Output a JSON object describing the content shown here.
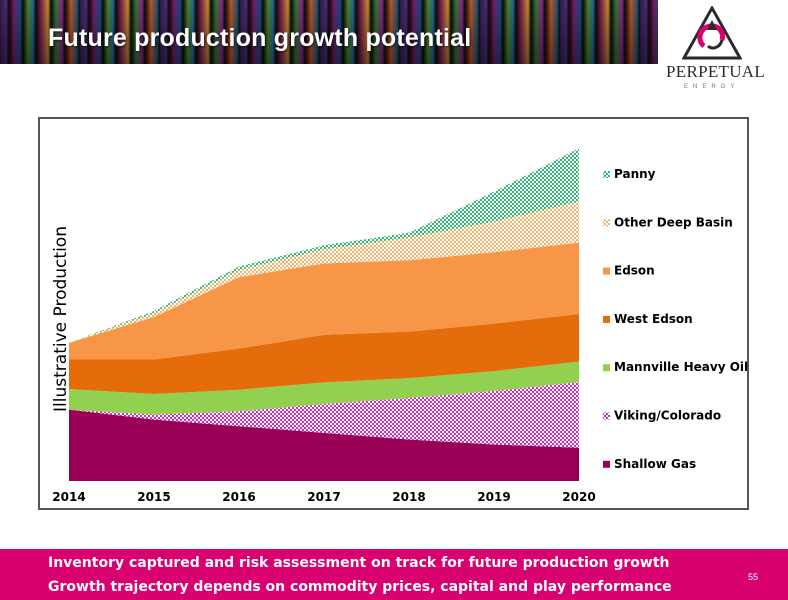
{
  "header": {
    "title": "Future production growth potential"
  },
  "logo": {
    "name": "PERPETUAL",
    "sub": "ENERGY"
  },
  "footer": {
    "line1": "Inventory captured and risk assessment on track for future production growth",
    "line2": "Growth trajectory depends on commodity prices, capital and play performance",
    "page_number": "55"
  },
  "chart_data": {
    "type": "area",
    "stacked": true,
    "title": "",
    "xlabel": "",
    "ylabel": "Illustrative Production",
    "x": [
      "2014",
      "2015",
      "2016",
      "2017",
      "2018",
      "2019",
      "2020"
    ],
    "ylim": [
      0,
      100
    ],
    "grid": false,
    "legend_position": "right",
    "series": [
      {
        "name": "Shallow Gas",
        "color": "#990055",
        "pattern": "solid",
        "values": [
          21.5,
          18.5,
          16.5,
          14.5,
          12.5,
          11.0,
          10.0
        ]
      },
      {
        "name": "Viking/Colorado",
        "color": "#d12bc0",
        "pattern": "dots",
        "values": [
          0,
          1.5,
          4.5,
          8.7,
          12.5,
          16.1,
          19.8
        ]
      },
      {
        "name": "Mannville Heavy Oil",
        "color": "#92d050",
        "pattern": "solid",
        "values": [
          6.2,
          6.2,
          6.5,
          6.5,
          6.0,
          6.0,
          6.2
        ]
      },
      {
        "name": "West Edson",
        "color": "#e46c0a",
        "pattern": "solid",
        "values": [
          8.9,
          10.4,
          12.4,
          14.3,
          14.0,
          14.3,
          14.3
        ]
      },
      {
        "name": "Edson",
        "color": "#f79646",
        "pattern": "solid",
        "values": [
          5.0,
          12.8,
          21.5,
          21.5,
          21.5,
          21.5,
          21.5
        ]
      },
      {
        "name": "Other Deep Basin",
        "color": "#f5b26b",
        "pattern": "dots",
        "values": [
          0,
          1.2,
          2.2,
          4.3,
          6.8,
          9.2,
          12.4
        ]
      },
      {
        "name": "Panny",
        "color": "#2eb872",
        "pattern": "dots",
        "values": [
          0,
          0.6,
          1.0,
          1.2,
          1.5,
          9.0,
          16.0
        ]
      }
    ]
  }
}
